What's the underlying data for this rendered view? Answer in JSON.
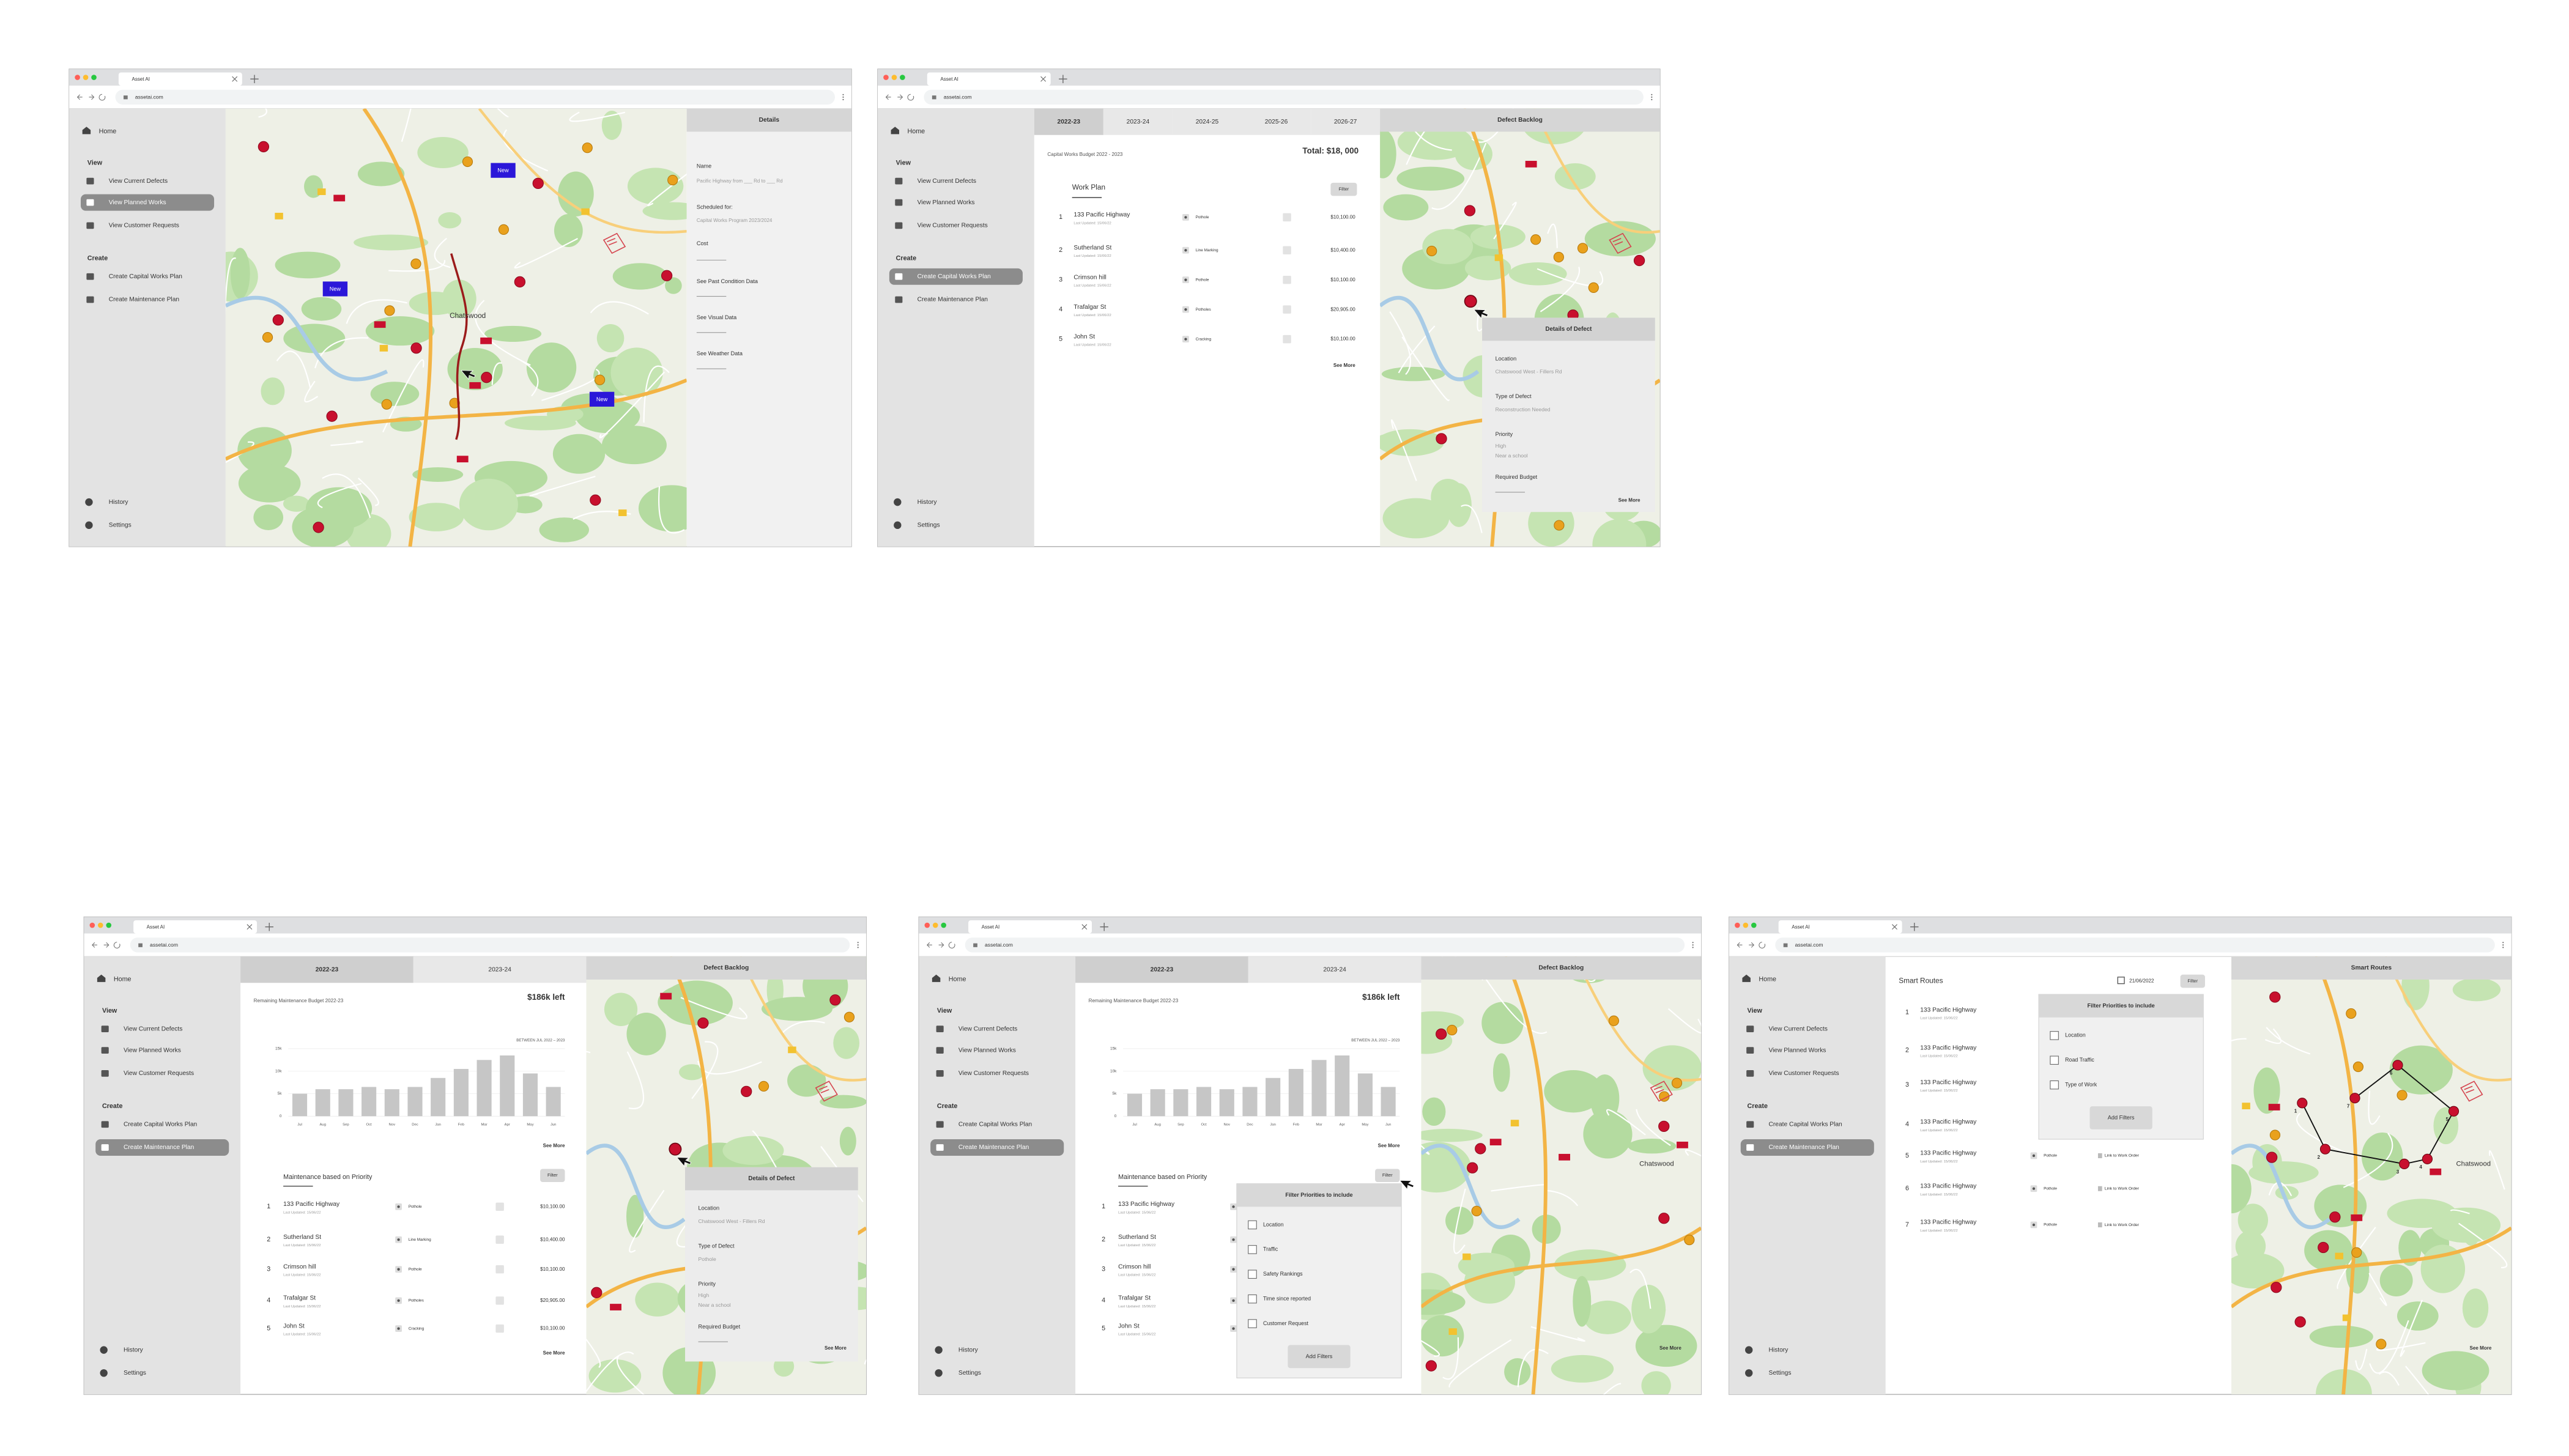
{
  "browser": {
    "tab_title": "Asset AI",
    "url": "assetai.com"
  },
  "sidebar": {
    "home": "Home",
    "view_heading": "View",
    "view_items": [
      "View Current Defects",
      "View Planned Works",
      "View Customer Requests"
    ],
    "create_heading": "Create",
    "create_items": [
      "Create Capital Works Plan",
      "Create Maintenance Plan"
    ],
    "history": "History",
    "settings": "Settings"
  },
  "work_items": [
    {
      "number": "1",
      "name": "133 Pacific Highway",
      "updated": "Last Updated: 15/06/22",
      "type": "Pothole",
      "cost": "$10,100.00"
    },
    {
      "number": "2",
      "name": "Sutherland St",
      "updated": "Last Updated: 15/06/22",
      "type": "Line Marking",
      "cost": "$10,400.00"
    },
    {
      "number": "3",
      "name": "Crimson hill",
      "updated": "Last Updated: 15/06/22",
      "type": "Pothole",
      "cost": "$10,100.00"
    },
    {
      "number": "4",
      "name": "Trafalgar St",
      "updated": "Last Updated: 15/06/22",
      "type": "Potholes",
      "cost": "$20,905.00"
    },
    {
      "number": "5",
      "name": "John St",
      "updated": "Last Updated: 15/06/22",
      "type": "Cracking",
      "cost": "$10,100.00"
    }
  ],
  "screens": [
    {
      "active_nav": "view_items.1",
      "new_badge": "New",
      "town": "Chatswood",
      "details": {
        "title": "Details",
        "name_label": "Name",
        "name_value": "Pacific Highway from ___ Rd to ___ Rd",
        "scheduled_label": "Scheduled for:",
        "scheduled_value": "Capital Works Program 2023/2024",
        "cost_label": "Cost",
        "links": [
          "See Past Condition Data",
          "See Visual Data",
          "See Weather Data"
        ]
      }
    },
    {
      "active_nav": "create_items.0",
      "tabs": [
        "2022-23",
        "2023-24",
        "2024-25",
        "2025-26",
        "2026-27"
      ],
      "active_tab": 0,
      "budget_title": "Capital Works Budget 2022 - 2023",
      "total": "Total: $18, 000",
      "list_title": "Work Plan",
      "filter": "Filter",
      "see_more": "See More",
      "panel_title": "Defect Backlog",
      "defect": {
        "title": "Details of Defect",
        "location_label": "Location",
        "location": "Chatswood West - Fillers Rd",
        "type_label": "Type of Defect",
        "type": "Reconstruction Needed",
        "priority_label": "Priority",
        "priority": "High",
        "priority_note": "Near a school",
        "budget_label": "Required Budget"
      },
      "panel_see_more": "See More"
    },
    {
      "active_nav": "create_items.1",
      "tabs": [
        "2022-23",
        "2023-24"
      ],
      "active_tab": 0,
      "budget_title": "Remaining Maintenance Budget 2022-23",
      "remaining": "$186k left",
      "chart_data": {
        "type": "bar",
        "note": "BETWEEN JUL 2022 – 2023",
        "categories": [
          "Jul",
          "Aug",
          "Sep",
          "Oct",
          "Nov",
          "Dec",
          "Jan",
          "Feb",
          "Mar",
          "Apr",
          "May",
          "Jun"
        ],
        "values": [
          5000,
          6000,
          6000,
          6500,
          6000,
          6500,
          8500,
          10500,
          12500,
          13500,
          9500,
          6500
        ],
        "color": "#c6c6c6",
        "ylim": [
          0,
          15000
        ],
        "yticks": [
          0,
          {
            "value": 5000,
            "label": "5k"
          },
          {
            "value": 10000,
            "label": "10k"
          },
          {
            "value": 15000,
            "label": "15k"
          }
        ],
        "grid": true
      },
      "chart_see_more": "See More",
      "list_title": "Maintenance based on Priority",
      "filter": "Filter",
      "see_more": "See More",
      "panel_title": "Defect Backlog",
      "defect": {
        "title": "Details of Defect",
        "location_label": "Location",
        "location": "Chatswood West - Fillers Rd",
        "type_label": "Type of Defect",
        "type": "Pothole",
        "priority_label": "Priority",
        "priority": "High",
        "priority_note": "Near a school",
        "budget_label": "Required Budget"
      },
      "panel_see_more": "See More"
    },
    {
      "active_nav": "create_items.1",
      "tabs": [
        "2022-23",
        "2023-24"
      ],
      "active_tab": 0,
      "budget_title": "Remaining Maintenance Budget 2022-23",
      "remaining": "$186k left",
      "chart_data": {
        "type": "bar",
        "note": "BETWEEN JUL 2022 – 2023",
        "categories": [
          "Jul",
          "Aug",
          "Sep",
          "Oct",
          "Nov",
          "Dec",
          "Jan",
          "Feb",
          "Mar",
          "Apr",
          "May",
          "Jun"
        ],
        "values": [
          5000,
          6000,
          6000,
          6500,
          6000,
          6500,
          8500,
          10500,
          12500,
          13500,
          9500,
          6500
        ],
        "color": "#c6c6c6",
        "ylim": [
          0,
          15000
        ],
        "yticks": [
          0,
          {
            "value": 5000,
            "label": "5k"
          },
          {
            "value": 10000,
            "label": "10k"
          },
          {
            "value": 15000,
            "label": "15k"
          }
        ],
        "grid": true
      },
      "chart_see_more": "See More",
      "list_title": "Maintenance based on Priority",
      "filter": "Filter",
      "see_more": "See More",
      "filter_popup": {
        "title": "Filter Priorities to include",
        "options": [
          "Location",
          "Traffic",
          "Safety Rankings",
          "Time since reported",
          "Customer Request"
        ],
        "button": "Add Filters"
      },
      "panel_title": "Defect Backlog",
      "town": "Chatswood",
      "panel_see_more": "See More"
    },
    {
      "active_nav": "create_items.1",
      "title": "Smart Routes",
      "date": "21/06/2022",
      "filter": "Filter",
      "routes": [
        {
          "number": "1",
          "name": "133 Pacific Highway",
          "updated": "Last Updated: 15/06/22"
        },
        {
          "number": "2",
          "name": "133 Pacific Highway",
          "updated": "Last Updated: 15/06/22"
        },
        {
          "number": "3",
          "name": "133 Pacific Highway",
          "updated": "Last Updated: 15/06/22"
        },
        {
          "number": "4",
          "name": "133 Pacific Highway",
          "updated": "Last Updated: 15/06/22"
        },
        {
          "number": "5",
          "name": "133 Pacific Highway",
          "updated": "Last Updated: 15/06/22",
          "type": "Pothole",
          "link": "Link to Work Order"
        },
        {
          "number": "6",
          "name": "133 Pacific Highway",
          "updated": "Last Updated: 15/06/22",
          "type": "Pothole",
          "link": "Link to Work Order"
        },
        {
          "number": "7",
          "name": "133 Pacific Highway",
          "updated": "Last Updated: 15/06/22",
          "type": "Pothole",
          "link": "Link to Work Order"
        }
      ],
      "filter_popup": {
        "title": "Filter Priorities to include",
        "options": [
          "Location",
          "Road Traffic",
          "Type of Work"
        ],
        "button": "Add Filters"
      },
      "panel_title": "Smart Routes",
      "route_labels": [
        "1",
        "2",
        "3",
        "4",
        "5",
        "6",
        "7"
      ],
      "town": "Chatswood",
      "panel_see_more": "See More"
    }
  ]
}
